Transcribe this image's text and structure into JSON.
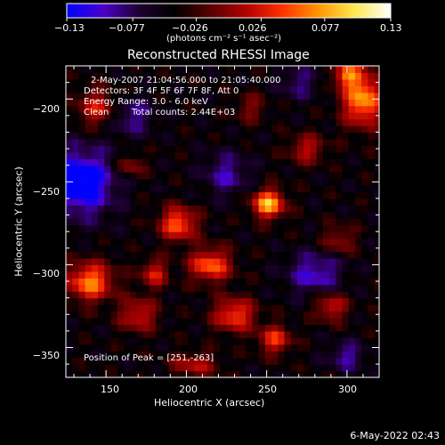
{
  "chart_data": {
    "type": "heatmap",
    "title": "Reconstructed RHESSI Image",
    "xlabel": "Heliocentric X (arcsec)",
    "ylabel": "Heliocentric Y (arcsec)",
    "xlim": [
      125,
      320
    ],
    "ylim": [
      -368,
      -180
    ],
    "x_ticks": [
      150,
      200,
      250,
      300
    ],
    "y_ticks": [
      -200,
      -250,
      -300,
      -350
    ],
    "x_tick_labels": [
      "150",
      "200",
      "250",
      "300"
    ],
    "y_tick_labels": [
      "−200",
      "−250",
      "−300",
      "−350"
    ],
    "colorbar": {
      "range": [
        -0.13,
        0.13
      ],
      "tick_values": [
        -0.13,
        -0.077,
        -0.026,
        0.026,
        0.077,
        0.13
      ],
      "tick_labels": [
        "−0.13",
        "−0.077",
        "−0.026",
        "0.026",
        "0.077",
        "0.13"
      ],
      "unit_label": "(photons cm⁻² s⁻¹ asec⁻²)",
      "colors": [
        "#0000ff",
        "#4b00c8",
        "#1e0032",
        "#000000",
        "#5a0000",
        "#b40000",
        "#ff3200",
        "#ff9600",
        "#ffe650",
        "#ffffff"
      ]
    },
    "annotations": {
      "time_range": "2-May-2007 21:04:56.000 to 21:05:40.000",
      "detectors": "Detectors: 3F 4F 5F 6F 7F 8F, Att 0",
      "energy_range": "Energy Range: 3.0 - 6.0 keV",
      "algorithm": "Clean",
      "total_counts": "Total counts: 2.44E+03",
      "peak": "Position of Peak = [251,-263]"
    },
    "peak": {
      "x": 251,
      "y": -263,
      "value": 0.13
    },
    "sources": [
      {
        "x": 251,
        "y": -263,
        "sx": 7,
        "sy": 6,
        "a": 0.13
      },
      {
        "x": 310,
        "y": -200,
        "sx": 9,
        "sy": 11,
        "a": 0.12
      },
      {
        "x": 300,
        "y": -185,
        "sx": 6,
        "sy": 5,
        "a": 0.09
      },
      {
        "x": 195,
        "y": -275,
        "sx": 8,
        "sy": 7,
        "a": 0.1
      },
      {
        "x": 215,
        "y": -300,
        "sx": 9,
        "sy": 7,
        "a": 0.1
      },
      {
        "x": 140,
        "y": -310,
        "sx": 10,
        "sy": 8,
        "a": 0.11
      },
      {
        "x": 230,
        "y": -330,
        "sx": 9,
        "sy": 7,
        "a": 0.09
      },
      {
        "x": 255,
        "y": -345,
        "sx": 7,
        "sy": 6,
        "a": 0.08
      },
      {
        "x": 170,
        "y": -330,
        "sx": 8,
        "sy": 7,
        "a": 0.07
      },
      {
        "x": 180,
        "y": -305,
        "sx": 6,
        "sy": 6,
        "a": 0.07
      },
      {
        "x": 290,
        "y": -325,
        "sx": 7,
        "sy": 6,
        "a": 0.07
      },
      {
        "x": 145,
        "y": -205,
        "sx": 9,
        "sy": 8,
        "a": 0.07
      },
      {
        "x": 165,
        "y": -240,
        "sx": 6,
        "sy": 5,
        "a": 0.05
      },
      {
        "x": 275,
        "y": -230,
        "sx": 8,
        "sy": 6,
        "a": 0.06
      },
      {
        "x": 205,
        "y": -360,
        "sx": 10,
        "sy": 5,
        "a": 0.06
      },
      {
        "x": 295,
        "y": -285,
        "sx": 7,
        "sy": 6,
        "a": 0.05
      },
      {
        "x": 240,
        "y": -205,
        "sx": 7,
        "sy": 6,
        "a": 0.04
      },
      {
        "x": 135,
        "y": -250,
        "sx": 14,
        "sy": 14,
        "a": -0.1
      },
      {
        "x": 165,
        "y": -210,
        "sx": 10,
        "sy": 8,
        "a": -0.05
      },
      {
        "x": 280,
        "y": -305,
        "sx": 12,
        "sy": 9,
        "a": -0.06
      },
      {
        "x": 225,
        "y": -245,
        "sx": 10,
        "sy": 9,
        "a": -0.05
      },
      {
        "x": 270,
        "y": -190,
        "sx": 9,
        "sy": 7,
        "a": -0.04
      },
      {
        "x": 300,
        "y": -355,
        "sx": 8,
        "sy": 6,
        "a": -0.05
      }
    ]
  },
  "footer": {
    "timestamp": "6-May-2022 02:43"
  }
}
